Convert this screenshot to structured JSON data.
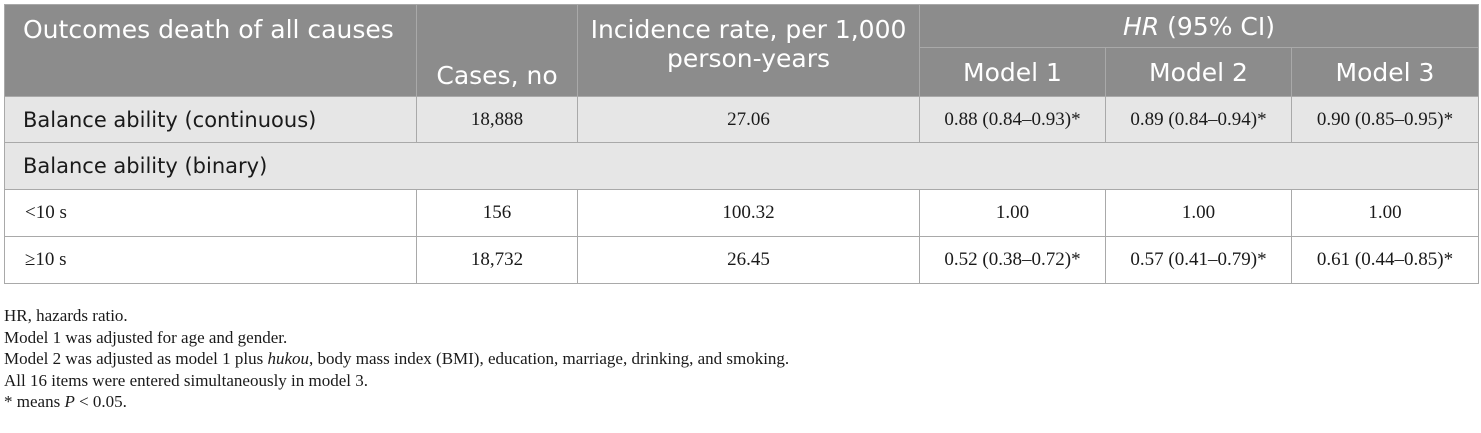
{
  "table": {
    "header": {
      "outcome": "Outcomes death of all causes",
      "cases": "Cases, no",
      "incidence": "Incidence rate, per 1,000 person-years",
      "hr_italic": "HR",
      "hr_rest": " (95% CI)",
      "models": [
        "Model 1",
        "Model 2",
        "Model 3"
      ]
    },
    "rows": {
      "continuous": {
        "label": "Balance ability (continuous)",
        "cases": "18,888",
        "rate": "27.06",
        "m1": "0.88 (0.84–0.93)*",
        "m2": "0.89 (0.84–0.94)*",
        "m3": "0.90 (0.85–0.95)*"
      },
      "binary_label": "Balance ability (binary)",
      "lt10": {
        "label": "<10 s",
        "cases": "156",
        "rate": "100.32",
        "m1": "1.00",
        "m2": "1.00",
        "m3": "1.00"
      },
      "ge10": {
        "label": "≥10 s",
        "cases": "18,732",
        "rate": "26.45",
        "m1": "0.52 (0.38–0.72)*",
        "m2": "0.57 (0.41–0.79)*",
        "m3": "0.61 (0.44–0.85)*"
      }
    }
  },
  "notes": {
    "hr": "HR, hazards ratio.",
    "model1": "Model 1 was adjusted for age and gender.",
    "model2_before": "Model 2 was adjusted as model 1 plus ",
    "model2_italic": "hukou",
    "model2_after": ", body mass index (BMI), education, marriage, drinking, and smoking.",
    "model3": "All 16 items were entered simultaneously in model 3.",
    "sig_before": "* means ",
    "sig_italic": "P",
    "sig_after": " < 0.05."
  }
}
